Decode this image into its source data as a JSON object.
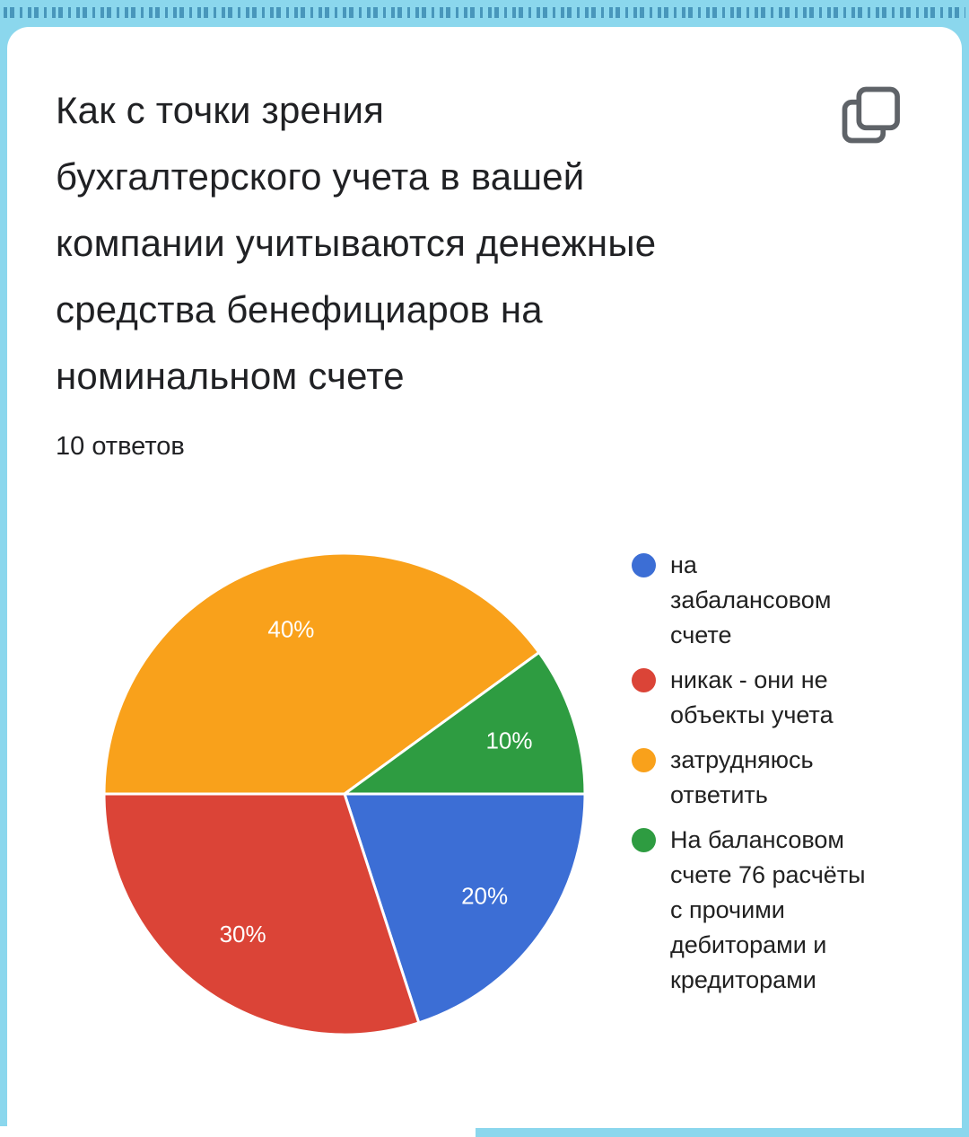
{
  "page": {
    "strip_color": "#8BD7ED",
    "card_color": "#ffffff",
    "copy_icon_color": "#5F6368"
  },
  "header": {
    "title_lines": [
      "Как с точки зрения",
      "бухгалтерского учета в вашей",
      "компании учитываются денежные",
      "средства бенефициаров на",
      "номинальном счете"
    ],
    "responses_label": "10 ответов"
  },
  "chart_data": {
    "type": "pie",
    "title": "Как с точки зрения бухгалтерского учета в вашей компании учитываются денежные средства бенефициаров на номинальном счете",
    "responses_count": 10,
    "unit": "percent",
    "start": "east-clockwise",
    "legend_position": "right",
    "slices": [
      {
        "label": "на забалансовом счете",
        "value": 20,
        "display": "20%",
        "color": "#3C6ED5"
      },
      {
        "label": "никак - они не объекты учета",
        "value": 30,
        "display": "30%",
        "color": "#DB4437"
      },
      {
        "label": "затрудняюсь ответить",
        "value": 40,
        "display": "40%",
        "color": "#F9A11B"
      },
      {
        "label": "На балансовом счете 76 расчёты с прочими дебиторами и кредиторами",
        "value": 10,
        "display": "10%",
        "color": "#2E9C41"
      }
    ],
    "legend_lines": [
      [
        "на",
        "забалансовом",
        "счете"
      ],
      [
        "никак - они не",
        "объекты учета"
      ],
      [
        "затрудняюсь",
        "ответить"
      ],
      [
        "На балансовом",
        "счете 76 расчёты",
        "с прочими",
        "дебиторами и",
        "кредиторами"
      ]
    ]
  }
}
